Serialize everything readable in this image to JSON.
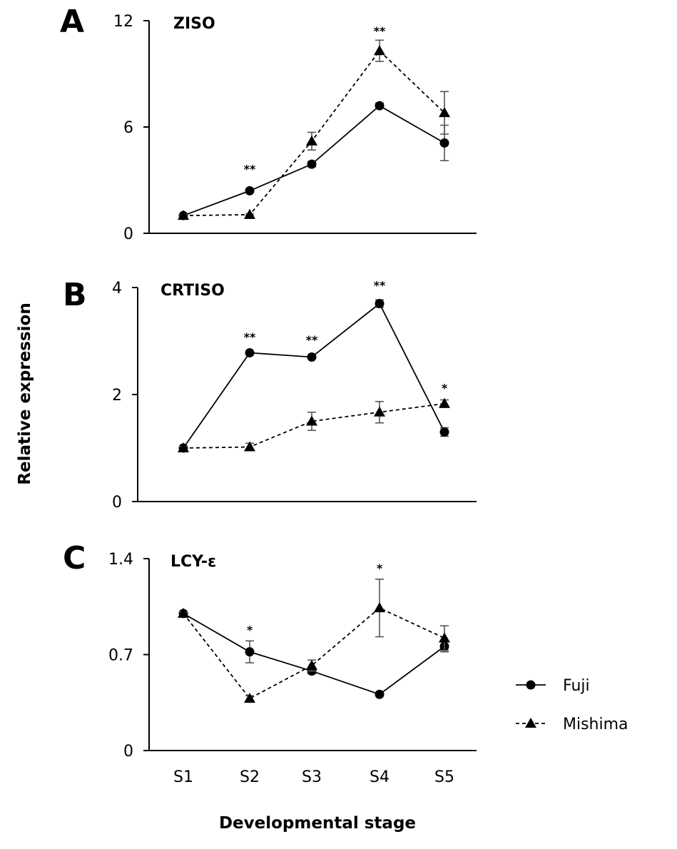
{
  "figure": {
    "ylabel": "Relative expression",
    "xlabel": "Developmental stage",
    "legend": [
      {
        "name": "Fuji",
        "marker": "circle",
        "line": "solid"
      },
      {
        "name": "Mishima",
        "marker": "triangle",
        "line": "dashed"
      }
    ],
    "legend_placement": "bottom-right"
  },
  "chart_data": [
    {
      "type": "line",
      "panel": "A",
      "title": "ZISO",
      "categories": [
        "S1",
        "S2",
        "S3",
        "S4",
        "S5"
      ],
      "ylim": [
        0,
        12
      ],
      "yticks": [
        "0",
        "6",
        "12"
      ],
      "ytick_values": [
        0,
        6,
        12
      ],
      "show_xtick_labels": false,
      "series": [
        {
          "name": "Fuji",
          "values": [
            1.0,
            2.4,
            3.9,
            7.2,
            5.1
          ],
          "errors": [
            0.05,
            0.1,
            0.15,
            0.15,
            1.0
          ]
        },
        {
          "name": "Mishima",
          "values": [
            1.0,
            1.05,
            5.2,
            10.3,
            6.8
          ],
          "errors": [
            0.05,
            0.05,
            0.5,
            0.6,
            1.2
          ]
        }
      ],
      "annotations": [
        {
          "category": "S2",
          "text": "**",
          "y": 3.4
        },
        {
          "category": "S4",
          "text": "**",
          "y": 11.2
        }
      ]
    },
    {
      "type": "line",
      "panel": "B",
      "title": "CRTISO",
      "categories": [
        "S1",
        "S2",
        "S3",
        "S4",
        "S5"
      ],
      "ylim": [
        0,
        4
      ],
      "yticks": [
        "0",
        "2",
        "4"
      ],
      "ytick_values": [
        0,
        2,
        4
      ],
      "show_xtick_labels": false,
      "series": [
        {
          "name": "Fuji",
          "values": [
            1.0,
            2.78,
            2.7,
            3.7,
            1.3
          ],
          "errors": [
            0.03,
            0.03,
            0.03,
            0.07,
            0.08
          ]
        },
        {
          "name": "Mishima",
          "values": [
            1.0,
            1.02,
            1.5,
            1.67,
            1.83
          ],
          "errors": [
            0.03,
            0.07,
            0.17,
            0.2,
            0.07
          ]
        }
      ],
      "annotations": [
        {
          "category": "S2",
          "text": "**",
          "y": 3.0
        },
        {
          "category": "S3",
          "text": "**",
          "y": 2.95
        },
        {
          "category": "S4",
          "text": "**",
          "y": 3.97
        },
        {
          "category": "S5",
          "text": "*",
          "y": 2.05
        }
      ]
    },
    {
      "type": "line",
      "panel": "C",
      "title": "LCY-ε",
      "categories": [
        "S1",
        "S2",
        "S3",
        "S4",
        "S5"
      ],
      "ylim": [
        0,
        1.4
      ],
      "yticks": [
        "0",
        "0.7",
        "1.4"
      ],
      "ytick_values": [
        0,
        0.7,
        1.4
      ],
      "show_xtick_labels": true,
      "series": [
        {
          "name": "Fuji",
          "values": [
            1.0,
            0.72,
            0.58,
            0.41,
            0.76
          ],
          "errors": [
            0.01,
            0.08,
            0.02,
            0.01,
            0.04
          ]
        },
        {
          "name": "Mishima",
          "values": [
            1.0,
            0.38,
            0.62,
            1.04,
            0.82
          ],
          "errors": [
            0.01,
            0.02,
            0.04,
            0.21,
            0.09
          ]
        }
      ],
      "annotations": [
        {
          "category": "S2",
          "text": "*",
          "y": 0.85
        },
        {
          "category": "S4",
          "text": "*",
          "y": 1.3
        }
      ]
    }
  ]
}
